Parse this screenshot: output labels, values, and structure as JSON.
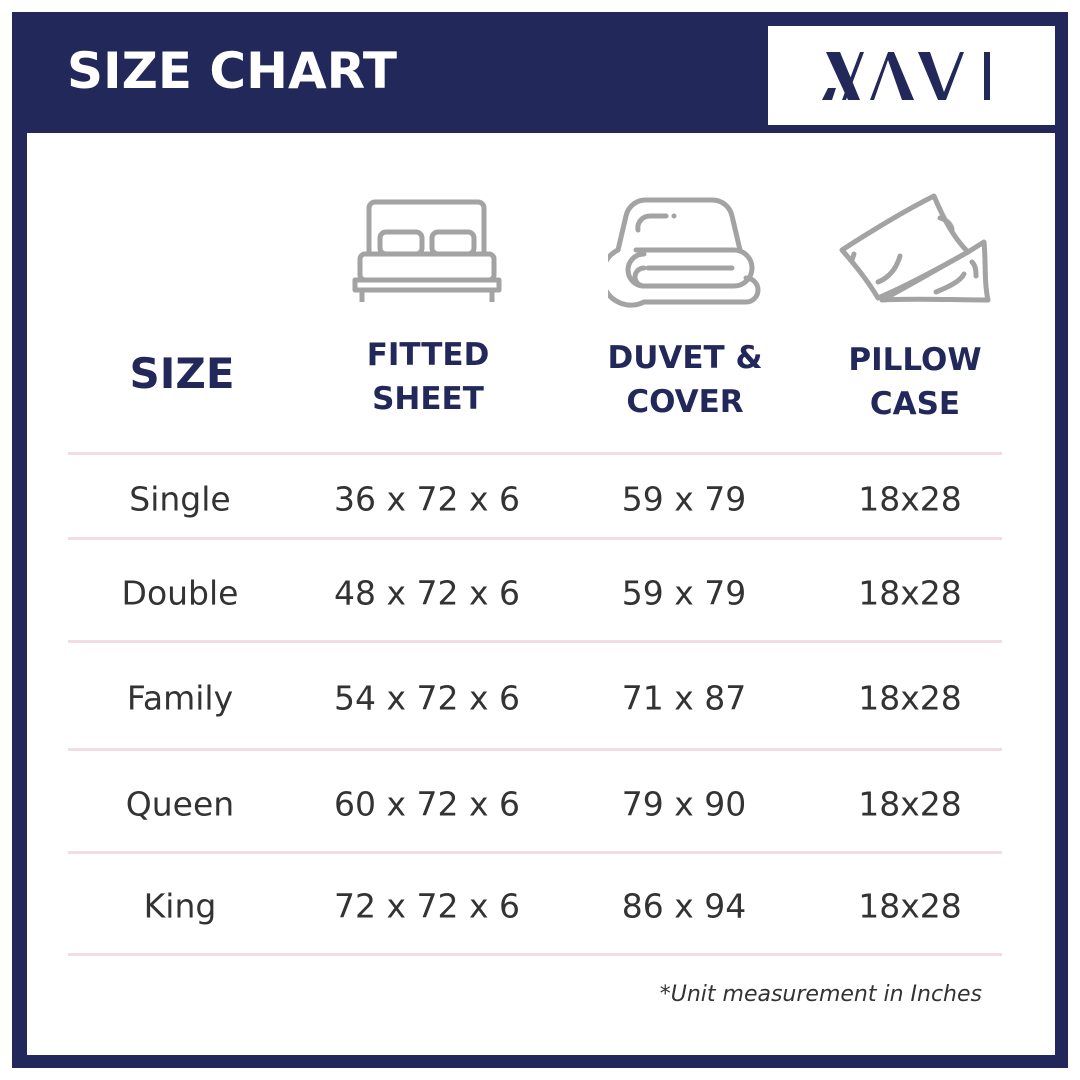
{
  "title": "SIZE CHART",
  "logo_text": "NAVI",
  "colors": {
    "navy": "#222859",
    "divider": "#f1dde3",
    "icon": "#a3a3a3",
    "text": "#333333"
  },
  "headers": {
    "size": "SIZE",
    "fitted": [
      "FITTED",
      "SHEET"
    ],
    "duvet": [
      "DUVET &",
      "COVER"
    ],
    "pillow": [
      "PILLOW",
      "CASE"
    ]
  },
  "icons": [
    "bed-icon",
    "folded-duvet-icon",
    "pillows-icon"
  ],
  "rows": [
    {
      "size": "Single",
      "fitted": "36 x 72 x 6",
      "duvet": "59 x 79",
      "pillow": "18x28"
    },
    {
      "size": "Double",
      "fitted": "48 x 72 x 6",
      "duvet": "59 x 79",
      "pillow": "18x28"
    },
    {
      "size": "Family",
      "fitted": "54 x 72 x 6",
      "duvet": "71 x 87",
      "pillow": "18x28"
    },
    {
      "size": "Queen",
      "fitted": "60 x 72 x 6",
      "duvet": "79 x 90",
      "pillow": "18x28"
    },
    {
      "size": "King",
      "fitted": "72 x 72 x 6",
      "duvet": "86 x 94",
      "pillow": "18x28"
    }
  ],
  "note": "*Unit measurement in Inches"
}
